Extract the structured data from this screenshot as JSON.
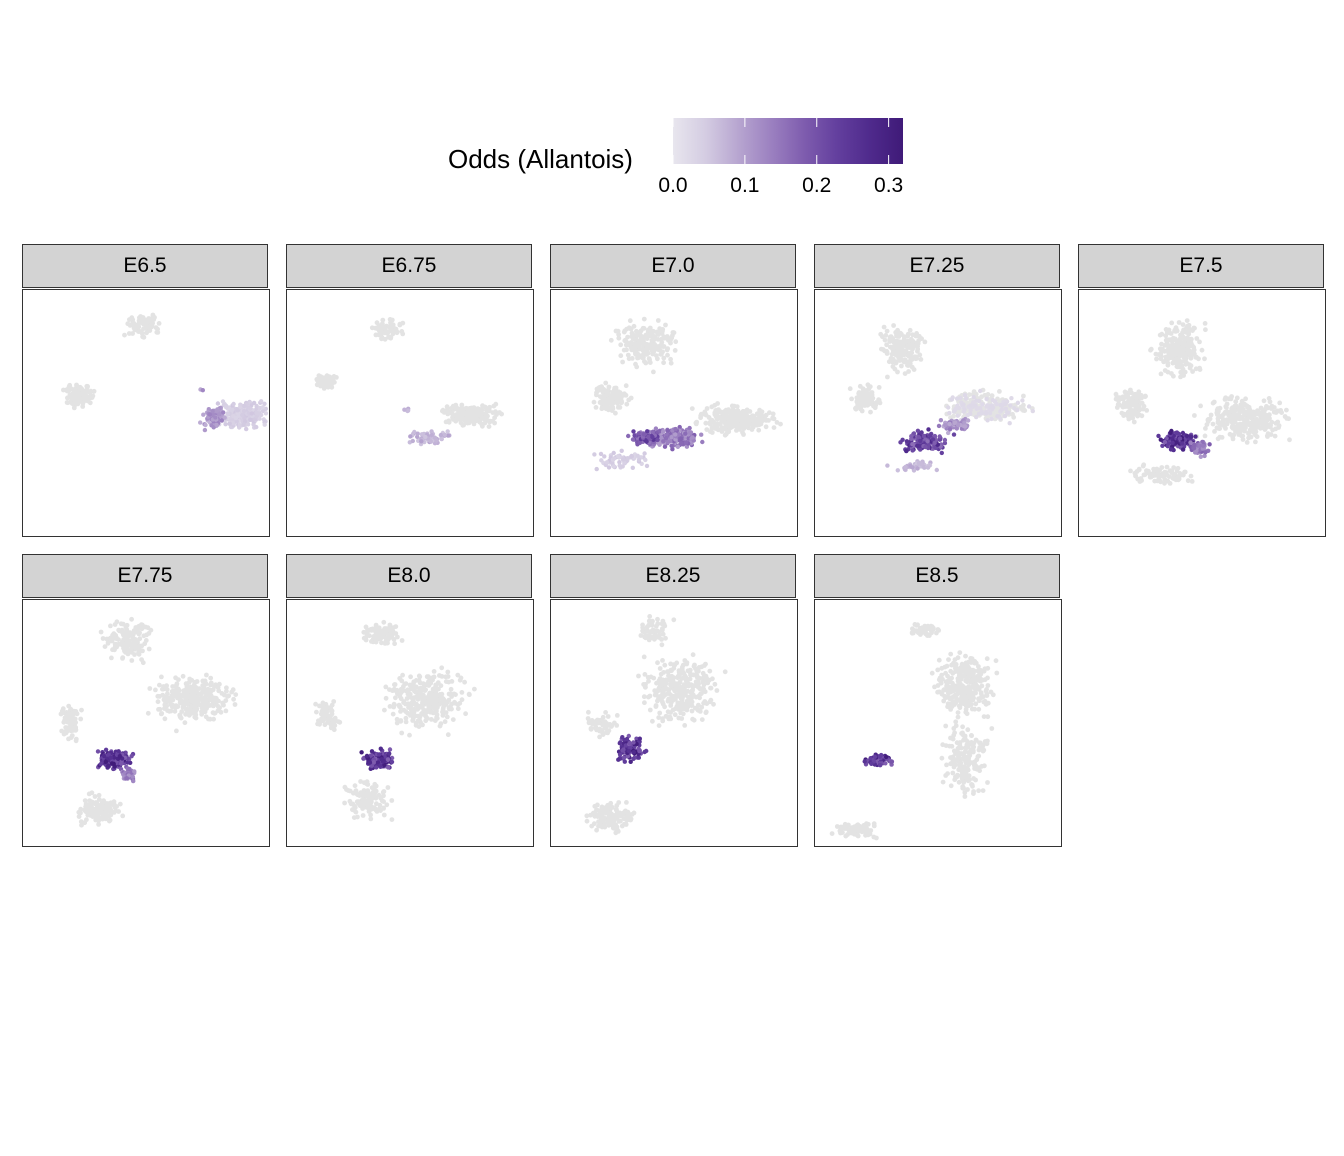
{
  "chart_data": {
    "type": "scatter",
    "legend": {
      "title": "Odds (Allantois)",
      "ticks": [
        "0.0",
        "0.1",
        "0.2",
        "0.3"
      ],
      "tick_values": [
        0.0,
        0.1,
        0.2,
        0.3
      ],
      "range": [
        0,
        0.32
      ],
      "colors": [
        "#e8e6ee",
        "#d4cce2",
        "#b7a5d0",
        "#9b80c0",
        "#7e5cae",
        "#633f9e",
        "#4f2a8c",
        "#3f1a78"
      ],
      "placement": "top"
    },
    "facets": [
      {
        "label": "E6.5",
        "max_odds": 0.15
      },
      {
        "label": "E6.75",
        "max_odds": 0.12
      },
      {
        "label": "E7.0",
        "max_odds": 0.26
      },
      {
        "label": "E7.25",
        "max_odds": 0.3
      },
      {
        "label": "E7.5",
        "max_odds": 0.32
      },
      {
        "label": "E7.75",
        "max_odds": 0.32
      },
      {
        "label": "E8.0",
        "max_odds": 0.32
      },
      {
        "label": "E8.25",
        "max_odds": 0.32
      },
      {
        "label": "E8.5",
        "max_odds": 0.32
      }
    ],
    "grid": false,
    "axes_visible": false
  }
}
